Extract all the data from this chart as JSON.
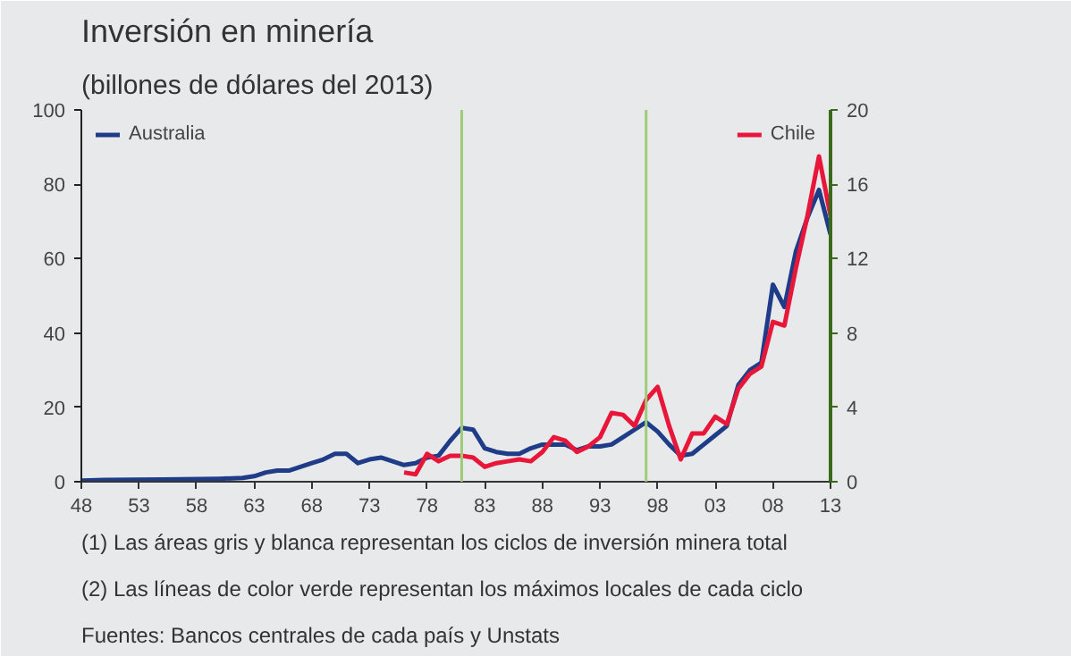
{
  "chart_data": {
    "type": "line",
    "title": "Inversión en minería",
    "subtitle": "(billones de dólares del 2013)",
    "x": [
      1948,
      1950,
      1955,
      1960,
      1962,
      1963,
      1964,
      1965,
      1966,
      1967,
      1968,
      1969,
      1970,
      1971,
      1972,
      1973,
      1974,
      1975,
      1976,
      1977,
      1978,
      1979,
      1980,
      1981,
      1982,
      1983,
      1984,
      1985,
      1986,
      1987,
      1988,
      1989,
      1990,
      1991,
      1992,
      1993,
      1994,
      1995,
      1996,
      1997,
      1998,
      1999,
      2000,
      2001,
      2002,
      2003,
      2004,
      2005,
      2006,
      2007,
      2008,
      2009,
      2010,
      2011,
      2012,
      2013
    ],
    "series": [
      {
        "name": "Australia",
        "color": "#1f3c88",
        "values": [
          0.3,
          0.5,
          0.6,
          0.8,
          1,
          1.5,
          2.5,
          3,
          3,
          4,
          5,
          6,
          7.5,
          7.5,
          5,
          6,
          6.5,
          5.5,
          4.5,
          5,
          6.5,
          7,
          11,
          14.5,
          14,
          9,
          8,
          7.5,
          7.5,
          9,
          10,
          10,
          10,
          8.5,
          9.5,
          9.5,
          10,
          12,
          14,
          16,
          13.5,
          10,
          7,
          7.5,
          10,
          12.5,
          15,
          26,
          30,
          32,
          53,
          47,
          62,
          71,
          78.5,
          66.5
        ]
      },
      {
        "name": "Chile",
        "color": "#e8173a",
        "axis": "y2",
        "values": [
          null,
          null,
          null,
          null,
          null,
          null,
          null,
          null,
          null,
          null,
          null,
          null,
          null,
          null,
          null,
          null,
          null,
          null,
          0.5,
          0.4,
          1.5,
          1.1,
          1.4,
          1.4,
          1.3,
          0.8,
          1.0,
          1.1,
          1.2,
          1.1,
          1.6,
          2.4,
          2.2,
          1.6,
          1.9,
          2.4,
          3.7,
          3.6,
          3.0,
          4.4,
          5.1,
          3.0,
          1.2,
          2.6,
          2.6,
          3.5,
          3.1,
          5.0,
          5.8,
          6.2,
          8.6,
          8.4,
          11.5,
          14.3,
          17.5,
          14.3
        ]
      }
    ],
    "xlim": [
      1948,
      2013
    ],
    "xticks": [
      {
        "value": 1948,
        "label": "48"
      },
      {
        "value": 1953,
        "label": "53"
      },
      {
        "value": 1958,
        "label": "58"
      },
      {
        "value": 1963,
        "label": "63"
      },
      {
        "value": 1968,
        "label": "68"
      },
      {
        "value": 1973,
        "label": "73"
      },
      {
        "value": 1978,
        "label": "78"
      },
      {
        "value": 1983,
        "label": "83"
      },
      {
        "value": 1988,
        "label": "88"
      },
      {
        "value": 1993,
        "label": "93"
      },
      {
        "value": 1998,
        "label": "98"
      },
      {
        "value": 2003,
        "label": "03"
      },
      {
        "value": 2008,
        "label": "08"
      },
      {
        "value": 2013,
        "label": "13"
      }
    ],
    "ylim": [
      0,
      100
    ],
    "yticks": [
      0,
      20,
      40,
      60,
      80,
      100
    ],
    "y2lim": [
      0,
      20
    ],
    "y2ticks": [
      0,
      4,
      8,
      12,
      16,
      20
    ],
    "ref_lines": [
      {
        "axis": "x",
        "value": 1981,
        "color": "#9dcc78"
      },
      {
        "axis": "x",
        "value": 1997,
        "color": "#9dcc78"
      }
    ],
    "legend": "top",
    "grid": false,
    "annotations": [
      "(1) Las áreas gris y blanca representan los ciclos de inversión minera total",
      "(2) Las líneas de color verde representan los máximos locales de cada ciclo",
      "Fuentes: Bancos centrales de cada país y Unstats"
    ]
  }
}
